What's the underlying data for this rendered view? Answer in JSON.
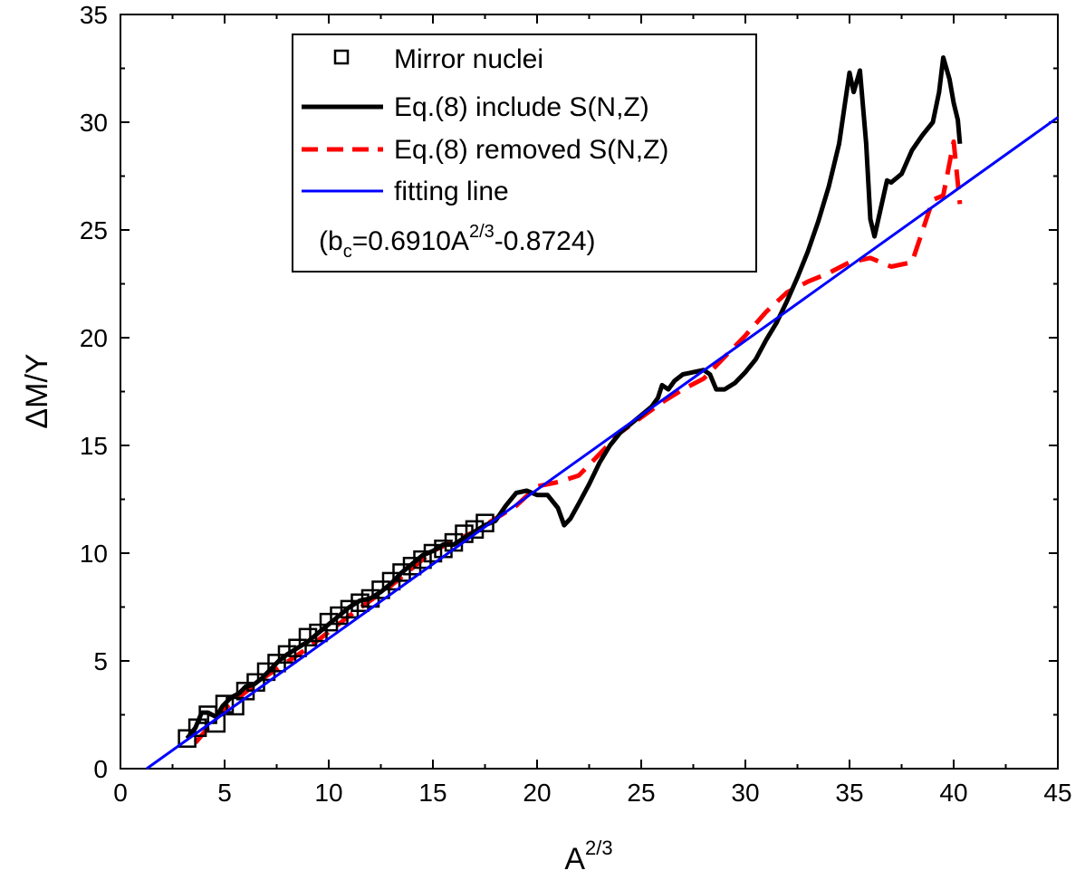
{
  "chart_data": {
    "type": "line",
    "xlabel_base": "A",
    "xlabel_sup": "2/3",
    "ylabel": "ΔM/Y",
    "xlim": [
      0,
      45
    ],
    "ylim": [
      0,
      35
    ],
    "xticks": [
      "0",
      "5",
      "10",
      "15",
      "20",
      "25",
      "30",
      "35",
      "40",
      "45"
    ],
    "yticks": [
      "0",
      "5",
      "10",
      "15",
      "20",
      "25",
      "30",
      "35"
    ],
    "grid": false,
    "legend_position": "top-left",
    "legend": {
      "mirror": "Mirror nuclei",
      "include": "Eq.(8) include S(N,Z)",
      "removed": "Eq.(8) removed S(N,Z)",
      "fit": "fitting line",
      "formula_open": "(b",
      "formula_sub": "c",
      "formula_mid": "=0.6910A",
      "formula_sup": "2/3",
      "formula_end": "-0.8724)"
    },
    "series": [
      {
        "name": "Mirror nuclei",
        "type": "scatter",
        "marker": "square-open",
        "color": "#000000",
        "x": [
          3.2,
          3.7,
          4.2,
          4.6,
          5.0,
          5.5,
          6.0,
          6.5,
          7.0,
          7.5,
          8.0,
          8.5,
          9.0,
          9.5,
          10.0,
          10.5,
          11.0,
          11.5,
          12.0,
          12.5,
          13.0,
          13.5,
          14.0,
          14.5,
          15.0,
          15.5,
          16.0,
          16.5,
          17.0,
          17.5
        ],
        "y": [
          1.4,
          1.9,
          2.5,
          2.1,
          3.0,
          2.9,
          3.6,
          4.0,
          4.5,
          4.9,
          5.3,
          5.6,
          6.1,
          6.3,
          6.8,
          7.1,
          7.4,
          7.7,
          7.9,
          8.3,
          8.7,
          9.1,
          9.4,
          9.7,
          10.0,
          10.2,
          10.5,
          10.9,
          11.1,
          11.4
        ]
      },
      {
        "name": "Eq.(8) include S(N,Z)",
        "type": "line",
        "color": "#000000",
        "x": [
          3.2,
          3.6,
          3.9,
          4.2,
          4.6,
          4.9,
          5.3,
          5.7,
          6.0,
          6.4,
          6.8,
          7.2,
          7.6,
          8.0,
          8.5,
          9.0,
          9.5,
          10.0,
          10.5,
          11.0,
          11.5,
          12.0,
          12.5,
          13.0,
          13.5,
          14.0,
          14.5,
          15.0,
          15.5,
          16.0,
          16.5,
          17.0,
          17.5,
          18.0,
          18.5,
          19.0,
          19.5,
          20.0,
          20.5,
          21.0,
          21.3,
          21.6,
          22.0,
          22.5,
          23.0,
          23.5,
          24.0,
          24.5,
          25.0,
          25.5,
          25.8,
          26.0,
          26.3,
          26.6,
          27.0,
          27.5,
          28.0,
          28.3,
          28.6,
          29.0,
          29.5,
          30.0,
          30.5,
          31.0,
          31.5,
          32.0,
          32.5,
          33.0,
          33.5,
          34.0,
          34.5,
          34.8,
          35.0,
          35.2,
          35.5,
          35.8,
          36.0,
          36.2,
          36.5,
          36.8,
          37.0,
          37.5,
          38.0,
          38.5,
          39.0,
          39.3,
          39.5,
          39.8,
          40.0,
          40.2,
          40.3
        ],
        "y": [
          1.4,
          1.9,
          2.6,
          2.6,
          2.4,
          2.9,
          3.3,
          3.5,
          3.8,
          3.9,
          4.2,
          4.6,
          5.0,
          5.3,
          5.6,
          5.9,
          6.3,
          6.7,
          7.1,
          7.5,
          7.8,
          7.9,
          8.2,
          8.6,
          9.1,
          9.5,
          9.9,
          10.1,
          10.4,
          10.4,
          10.7,
          11.0,
          11.3,
          11.5,
          12.2,
          12.8,
          12.9,
          12.7,
          12.7,
          12.1,
          11.3,
          11.6,
          12.3,
          13.2,
          14.2,
          15.0,
          15.6,
          16.0,
          16.4,
          16.8,
          17.2,
          17.8,
          17.6,
          18.0,
          18.3,
          18.4,
          18.5,
          18.3,
          17.6,
          17.6,
          17.9,
          18.4,
          19.0,
          19.9,
          20.7,
          21.7,
          22.8,
          24.0,
          25.4,
          27.0,
          29.0,
          31.0,
          32.3,
          31.4,
          32.4,
          29.0,
          25.5,
          24.7,
          26.0,
          27.3,
          27.2,
          27.6,
          28.7,
          29.4,
          30.0,
          31.4,
          33.0,
          32.0,
          30.9,
          30.1,
          29.0
        ]
      },
      {
        "name": "Eq.(8) removed S(N,Z)",
        "type": "line",
        "dashed": true,
        "color": "#ff0000",
        "x": [
          3.6,
          5.0,
          7.0,
          9.0,
          11.0,
          13.0,
          15.0,
          17.0,
          19.0,
          20.0,
          21.0,
          22.0,
          23.0,
          24.0,
          25.0,
          26.0,
          27.0,
          28.0,
          29.0,
          30.0,
          31.0,
          32.0,
          33.0,
          34.0,
          35.0,
          36.0,
          37.0,
          38.0,
          39.0,
          39.5,
          40.0,
          40.3
        ],
        "y": [
          1.2,
          2.8,
          4.3,
          5.6,
          7.1,
          8.5,
          10.1,
          11.0,
          12.2,
          13.1,
          13.3,
          13.6,
          14.6,
          15.6,
          16.3,
          17.0,
          17.6,
          18.1,
          19.1,
          20.1,
          21.2,
          22.1,
          22.6,
          23.0,
          23.5,
          23.7,
          23.3,
          23.5,
          26.4,
          26.6,
          29.1,
          26.2
        ]
      },
      {
        "name": "fitting line",
        "type": "line",
        "color": "#0000ff",
        "x": [
          1.263,
          45
        ],
        "y": [
          0,
          30.2226
        ]
      }
    ]
  }
}
